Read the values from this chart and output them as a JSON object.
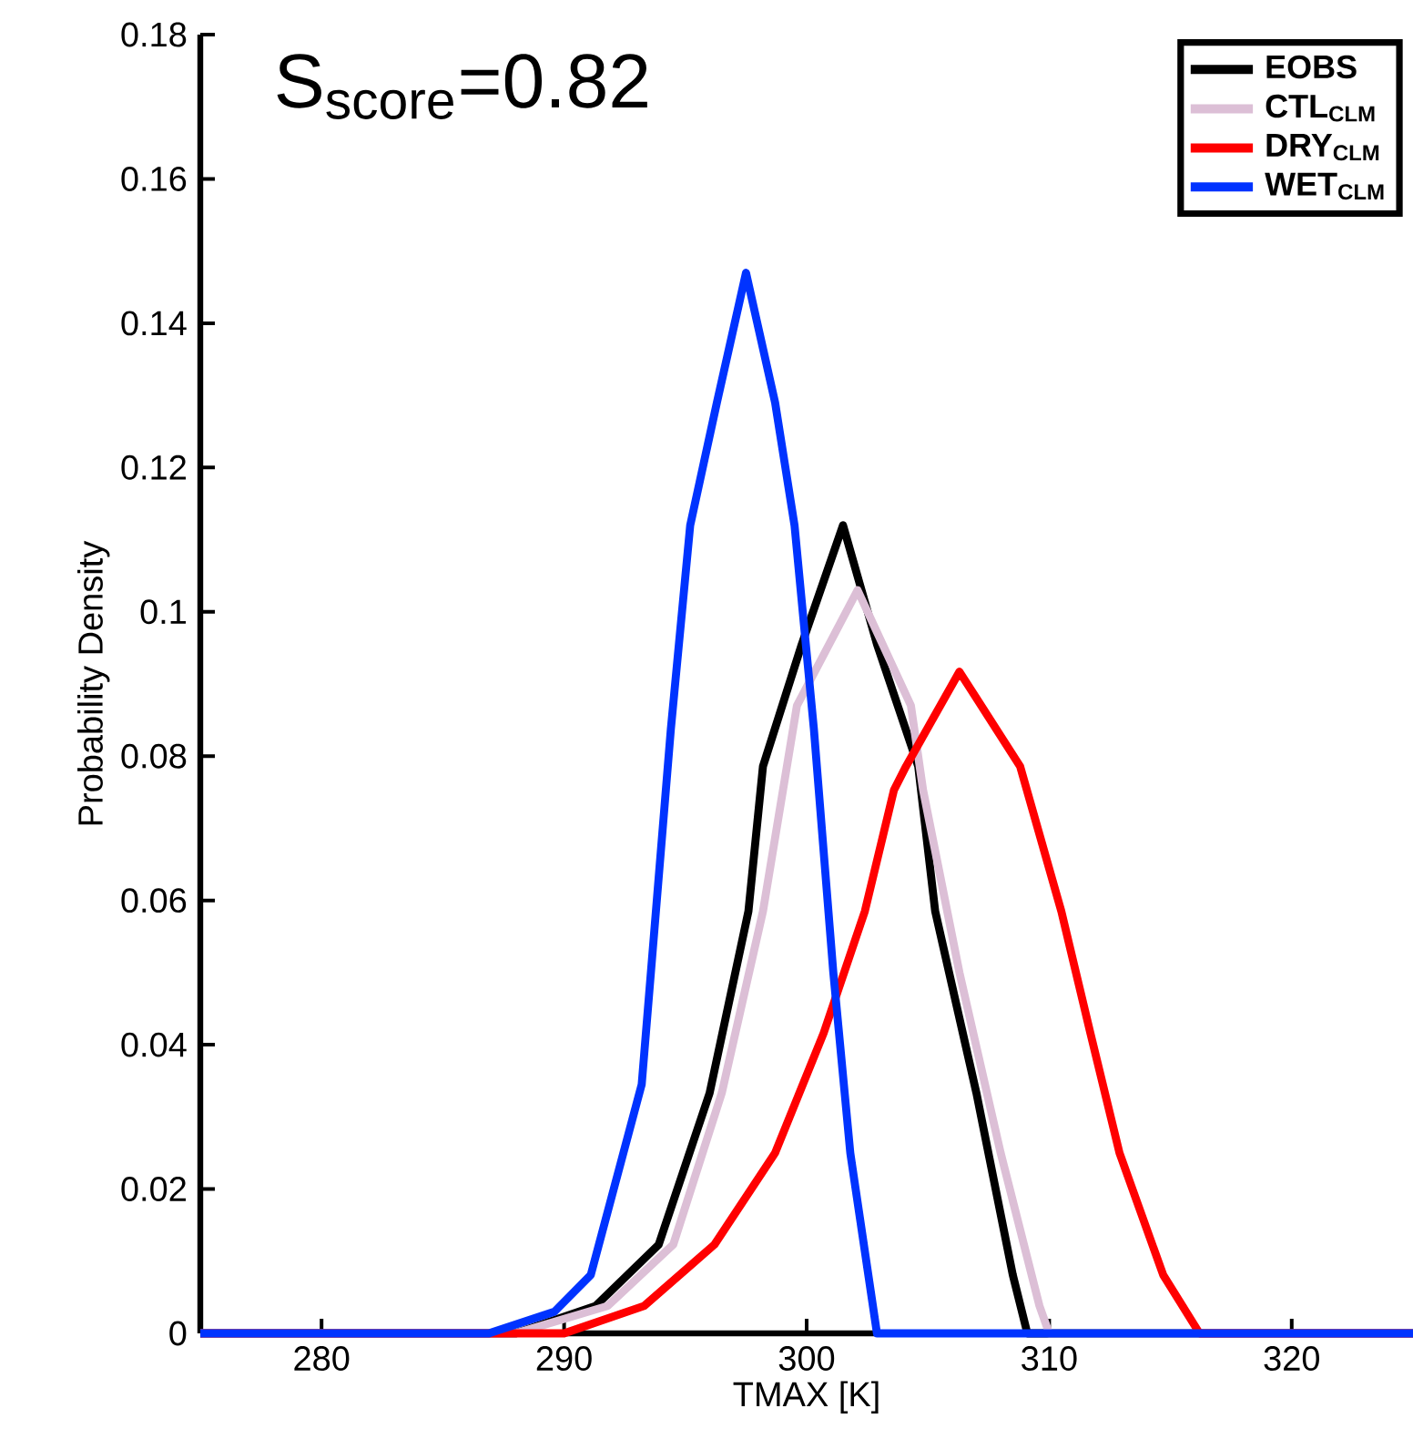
{
  "chart_data": {
    "type": "line",
    "xlabel": "TMAX [K]",
    "ylabel": "Probability Density",
    "annotations": [
      "S$_{score}$=0.82"
    ],
    "xlim": [
      275,
      325
    ],
    "xticks": [
      280,
      290,
      300,
      310,
      320
    ],
    "ylim": [
      0,
      0.18
    ],
    "yticks": [
      0,
      0.02,
      0.04,
      0.06,
      0.08,
      0.1,
      0.12,
      0.14,
      0.16,
      0.18
    ],
    "legend": "top right",
    "grid": false,
    "marker": "none",
    "line_style": "solid",
    "series": [
      {
        "name": "EOBS",
        "color": "#000000",
        "x": [
          275,
          288,
          291.3,
          293.9,
          296.0,
          297.6,
          298.2,
          299.8,
          301.5,
          302.9,
          304.6,
          305.3,
          307.0,
          308.5,
          309.1,
          325
        ],
        "values": [
          0,
          0,
          0.0038,
          0.0123,
          0.0333,
          0.0585,
          0.0786,
          0.0955,
          0.112,
          0.0955,
          0.0786,
          0.0585,
          0.0333,
          0.0081,
          0,
          0
        ]
      },
      {
        "name": "CTL$_{CLM}$",
        "color": "#dcbfd6",
        "x": [
          275,
          288,
          291.8,
          294.5,
          296.5,
          298.2,
          299.6,
          302.1,
          304.3,
          304.8,
          306.3,
          308.0,
          309.6,
          310.0,
          325
        ],
        "values": [
          0,
          0,
          0.0038,
          0.0123,
          0.0333,
          0.0585,
          0.087,
          0.103,
          0.087,
          0.0753,
          0.05,
          0.025,
          0.0038,
          0,
          0
        ]
      },
      {
        "name": "DRY$_{CLM}$",
        "color": "#ff0000",
        "x": [
          275,
          290,
          293.3,
          296.2,
          298.7,
          300.7,
          302.4,
          303.6,
          304.1,
          306.3,
          308.8,
          310.5,
          311.7,
          312.9,
          314.7,
          316.2,
          325
        ],
        "values": [
          0,
          0,
          0.0038,
          0.0123,
          0.025,
          0.0416,
          0.0585,
          0.0753,
          0.0786,
          0.0917,
          0.0786,
          0.0585,
          0.0416,
          0.025,
          0.0081,
          0,
          0
        ]
      },
      {
        "name": "WET$_{CLM}$",
        "color": "#0033ff",
        "x": [
          275,
          286.9,
          289.6,
          291.1,
          293.2,
          294.4,
          295.2,
          296.3,
          297.5,
          298.7,
          299.5,
          300.3,
          301.1,
          301.8,
          302.9,
          325
        ],
        "values": [
          0,
          0,
          0.003,
          0.0081,
          0.0345,
          0.0837,
          0.112,
          0.129,
          0.147,
          0.129,
          0.112,
          0.0837,
          0.05,
          0.025,
          0,
          0
        ]
      }
    ]
  }
}
